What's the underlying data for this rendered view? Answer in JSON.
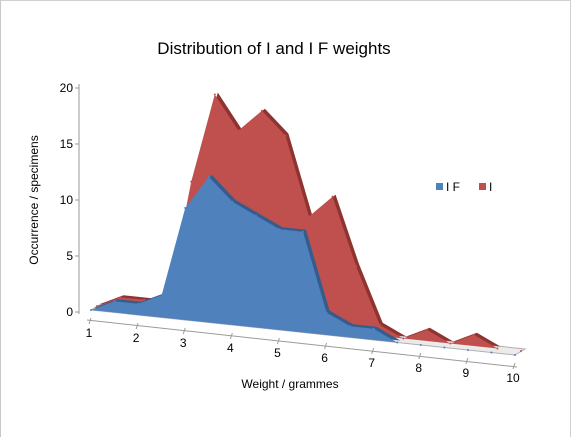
{
  "chart_data": {
    "type": "area",
    "title": "Distribution of I and I F weights",
    "xlabel": "Weight / grammes",
    "ylabel": "Occurrence / specimens",
    "ylim": [
      0,
      20
    ],
    "yticks": [
      "0",
      "5",
      "10",
      "15",
      "20"
    ],
    "x": [
      1,
      1.5,
      2,
      2.5,
      3,
      3.5,
      4,
      4.5,
      5,
      5.5,
      6,
      6.5,
      7,
      7.5,
      8,
      8.5,
      9,
      9.5,
      10
    ],
    "xticks": [
      "1",
      "2",
      "3",
      "4",
      "5",
      "6",
      "7",
      "8",
      "9",
      "10"
    ],
    "series": [
      {
        "name": "I",
        "color": "#C0504D",
        "values": [
          0,
          1,
          1,
          1,
          12,
          20,
          17,
          19,
          17,
          10,
          12,
          6,
          1,
          0,
          1,
          0,
          1,
          0,
          0
        ]
      },
      {
        "name": "I F",
        "color": "#4F81BD",
        "values": [
          0,
          1,
          1,
          2,
          10,
          13,
          11,
          10,
          9,
          9,
          2,
          1,
          1,
          0,
          0,
          0,
          0,
          0,
          0
        ]
      }
    ],
    "legend": {
      "position": "right",
      "order": [
        "I F",
        "I"
      ]
    },
    "grid": false
  }
}
